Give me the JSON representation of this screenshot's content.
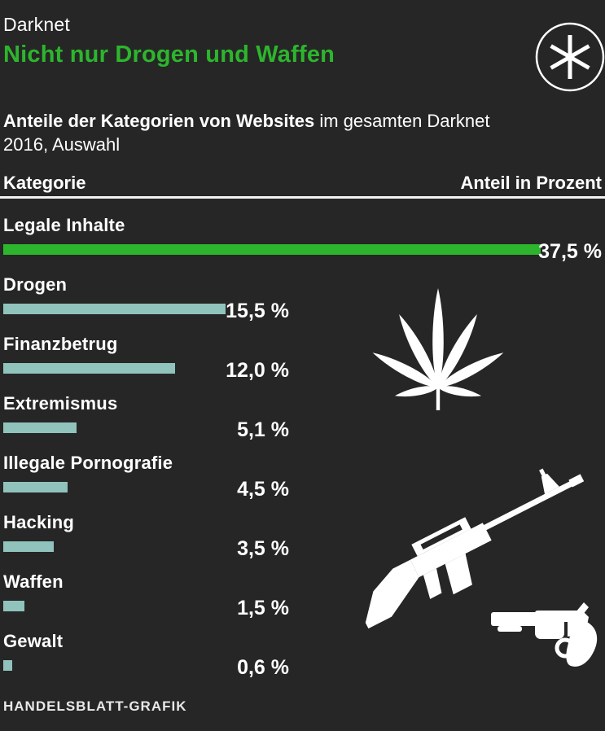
{
  "colors": {
    "background": "#262626",
    "accent_green": "#2db52d",
    "bar_teal": "#8fc3bc",
    "text": "#ffffff",
    "rule": "#f2f2f2",
    "footer_text": "#e9e9e9"
  },
  "header": {
    "kicker": "Darknet",
    "title": "Nicht nur Drogen und Waffen"
  },
  "subtitle": {
    "bold": "Anteile der Kategorien von Websites",
    "rest": " im gesamten Darknet 2016, Auswahl"
  },
  "table_header": {
    "category": "Kategorie",
    "share": "Anteil in Prozent"
  },
  "chart_data": {
    "type": "bar",
    "orientation": "horizontal",
    "title": "Nicht nur Drogen und Waffen",
    "subtitle": "Anteile der Kategorien von Websites im gesamten Darknet 2016, Auswahl",
    "xlabel": "Anteil in Prozent",
    "ylabel": "Kategorie",
    "categories": [
      "Legale Inhalte",
      "Drogen",
      "Finanzbetrug",
      "Extremismus",
      "Illegale Pornografie",
      "Hacking",
      "Waffen",
      "Gewalt"
    ],
    "values": [
      37.5,
      15.5,
      12.0,
      5.1,
      4.5,
      3.5,
      1.5,
      0.6
    ],
    "value_labels": [
      "37,5 %",
      "15,5 %",
      "12,0 %",
      "5,1 %",
      "4,5 %",
      "3,5 %",
      "1,5 %",
      "0,6 %"
    ],
    "unit": "%",
    "xlim": [
      0,
      37.5
    ],
    "grid": false,
    "highlight_index": 0,
    "highlight_color": "#2db52d",
    "bar_color": "#8fc3bc"
  },
  "icon_names": {
    "badge": "asterisk-icon",
    "drugs": "cannabis-leaf-icon",
    "rifle": "rifle-icon",
    "revolver": "revolver-icon"
  },
  "footer": {
    "credit": "HANDELSBLATT-GRAFIK"
  }
}
